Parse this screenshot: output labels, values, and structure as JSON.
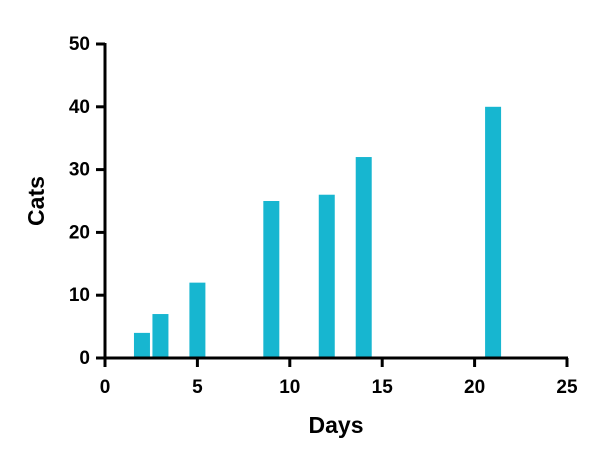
{
  "chart_data": {
    "type": "bar",
    "x_label": "Days",
    "y_label": "Cats",
    "x": [
      2,
      3,
      5,
      9,
      12,
      14,
      21
    ],
    "values": [
      4,
      7,
      12,
      25,
      26,
      32,
      40
    ],
    "color": "#17b6d0",
    "xlim": [
      0,
      25
    ],
    "xticks": [
      0,
      5,
      10,
      15,
      20,
      25
    ],
    "ylim": [
      0,
      50
    ],
    "yticks": [
      0,
      10,
      20,
      30,
      40,
      50
    ]
  }
}
